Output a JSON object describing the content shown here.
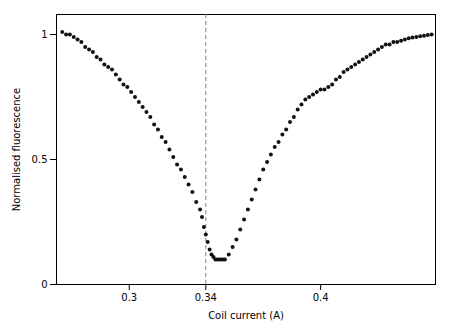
{
  "chart_data": {
    "type": "scatter",
    "x": [
      0.265,
      0.267,
      0.269,
      0.271,
      0.273,
      0.275,
      0.277,
      0.279,
      0.281,
      0.283,
      0.285,
      0.287,
      0.289,
      0.291,
      0.293,
      0.295,
      0.297,
      0.299,
      0.301,
      0.303,
      0.305,
      0.307,
      0.309,
      0.311,
      0.313,
      0.315,
      0.317,
      0.319,
      0.321,
      0.323,
      0.325,
      0.327,
      0.329,
      0.331,
      0.333,
      0.335,
      0.337,
      0.338,
      0.339,
      0.34,
      0.341,
      0.342,
      0.343,
      0.344,
      0.345,
      0.346,
      0.347,
      0.348,
      0.349,
      0.35,
      0.352,
      0.354,
      0.356,
      0.358,
      0.36,
      0.362,
      0.364,
      0.366,
      0.368,
      0.37,
      0.372,
      0.374,
      0.376,
      0.378,
      0.38,
      0.382,
      0.384,
      0.386,
      0.388,
      0.39,
      0.392,
      0.394,
      0.396,
      0.398,
      0.4,
      0.402,
      0.404,
      0.406,
      0.408,
      0.41,
      0.412,
      0.414,
      0.416,
      0.418,
      0.42,
      0.422,
      0.424,
      0.426,
      0.428,
      0.43,
      0.432,
      0.434,
      0.436,
      0.438,
      0.44,
      0.442,
      0.444,
      0.446,
      0.448,
      0.45,
      0.452,
      0.454,
      0.456,
      0.458
    ],
    "values": [
      1.01,
      1.0,
      1.0,
      0.99,
      0.98,
      0.97,
      0.95,
      0.94,
      0.93,
      0.91,
      0.9,
      0.88,
      0.87,
      0.86,
      0.84,
      0.82,
      0.8,
      0.79,
      0.77,
      0.75,
      0.73,
      0.71,
      0.69,
      0.67,
      0.64,
      0.62,
      0.59,
      0.57,
      0.54,
      0.51,
      0.48,
      0.46,
      0.43,
      0.4,
      0.37,
      0.33,
      0.3,
      0.27,
      0.23,
      0.2,
      0.17,
      0.14,
      0.12,
      0.11,
      0.1,
      0.1,
      0.1,
      0.1,
      0.1,
      0.1,
      0.12,
      0.15,
      0.18,
      0.22,
      0.26,
      0.3,
      0.34,
      0.38,
      0.42,
      0.46,
      0.49,
      0.52,
      0.55,
      0.57,
      0.6,
      0.62,
      0.65,
      0.67,
      0.7,
      0.72,
      0.74,
      0.75,
      0.76,
      0.77,
      0.78,
      0.78,
      0.79,
      0.8,
      0.82,
      0.83,
      0.85,
      0.86,
      0.87,
      0.88,
      0.89,
      0.9,
      0.91,
      0.92,
      0.93,
      0.94,
      0.95,
      0.96,
      0.96,
      0.97,
      0.97,
      0.975,
      0.98,
      0.985,
      0.988,
      0.99,
      0.993,
      0.995,
      0.998,
      1.0
    ],
    "color": "#111111",
    "vline_x": 0.34,
    "xlabel": "Coil current (A)",
    "ylabel": "Normalised fluorescence",
    "xlim": [
      0.262,
      0.46
    ],
    "ylim": [
      0.0,
      1.08
    ],
    "xticks": [
      0.3,
      0.34,
      0.4
    ],
    "yticks": [
      0,
      0.5,
      1
    ],
    "grid": false
  }
}
